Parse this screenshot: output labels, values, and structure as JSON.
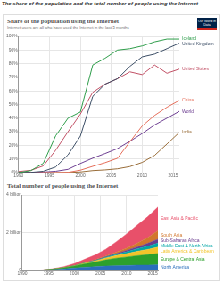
{
  "heading": "The share of the population and the total number of people using the Internet",
  "logo": "Our World in Data",
  "chart_data": [
    {
      "type": "line",
      "title": "Share of the population using the Internet",
      "subtitle": "Internet users are all who have used the Internet in the last 3 months",
      "x": [
        1990,
        1992,
        1994,
        1996,
        1998,
        2000,
        2002,
        2004,
        2006,
        2008,
        2010,
        2012,
        2014,
        2016
      ],
      "xlim": [
        1990,
        2016
      ],
      "xticks": [
        1990,
        1995,
        2000,
        2005,
        2010,
        2015
      ],
      "ylim": [
        0,
        100
      ],
      "yticks": [
        {
          "value": 0,
          "label": "0%"
        },
        {
          "value": 10,
          "label": "10%"
        },
        {
          "value": 20,
          "label": "20%"
        },
        {
          "value": 30,
          "label": "30%"
        },
        {
          "value": 40,
          "label": "40%"
        },
        {
          "value": 50,
          "label": "50%"
        },
        {
          "value": 60,
          "label": "60%"
        },
        {
          "value": 70,
          "label": "70%"
        },
        {
          "value": 80,
          "label": "80%"
        },
        {
          "value": 90,
          "label": "90%"
        },
        {
          "value": 100,
          "label": "100%"
        }
      ],
      "grid": true,
      "series": [
        {
          "name": "Iceland",
          "color": "#2e9d4a",
          "values": [
            0,
            1.5,
            6.8,
            27,
            40,
            44.5,
            79,
            84,
            90,
            91,
            93,
            96,
            98,
            98
          ]
        },
        {
          "name": "United Kingdom",
          "color": "#3c4e66",
          "values": [
            0.1,
            0.2,
            1,
            4.1,
            13,
            26.8,
            56,
            65,
            69,
            78,
            85,
            87,
            91,
            95
          ]
        },
        {
          "name": "United States",
          "color": "#c15065",
          "values": [
            0.8,
            1.7,
            4.9,
            16.4,
            30,
            43,
            59,
            65,
            69,
            74,
            72,
            79,
            73,
            76
          ]
        },
        {
          "name": "China",
          "color": "#e56e5a",
          "values": [
            0,
            0,
            0,
            0,
            0.2,
            1.8,
            4.6,
            7.3,
            10.5,
            22.6,
            34.3,
            42,
            48,
            53
          ]
        },
        {
          "name": "World",
          "color": "#6d3e91",
          "values": [
            0,
            0.2,
            0.4,
            1,
            2.4,
            6.7,
            10.6,
            14,
            17.6,
            23,
            28.7,
            35,
            40,
            45
          ]
        },
        {
          "name": "India",
          "color": "#996d39",
          "values": [
            0,
            0,
            0,
            0,
            0.1,
            0.5,
            1.5,
            2,
            2.8,
            4.4,
            7.5,
            12.6,
            21,
            29.5
          ]
        }
      ]
    },
    {
      "type": "area",
      "title": "Total number of people using the Internet",
      "x": [
        1990,
        1992,
        1994,
        1996,
        1998,
        2000,
        2002,
        2004,
        2006,
        2008,
        2010,
        2012,
        2014,
        2016
      ],
      "xlim": [
        1990,
        2016
      ],
      "xticks": [
        1990,
        1995,
        2000,
        2005,
        2010,
        2015
      ],
      "ylim": [
        0,
        4
      ],
      "yticks": [
        0,
        {
          "value": 2,
          "label": "2 billion"
        },
        {
          "value": 4,
          "label": "4 billion"
        }
      ],
      "stacked": true,
      "grid": true,
      "series": [
        {
          "name": "North America",
          "color": "#2a6ebb",
          "values": [
            0.002,
            0.005,
            0.014,
            0.045,
            0.085,
            0.13,
            0.17,
            0.2,
            0.23,
            0.25,
            0.26,
            0.28,
            0.28,
            0.3
          ]
        },
        {
          "name": "Europe & Central Asia",
          "color": "#2ca02c",
          "values": [
            0.001,
            0.003,
            0.01,
            0.03,
            0.06,
            0.1,
            0.18,
            0.25,
            0.33,
            0.4,
            0.45,
            0.5,
            0.55,
            0.6
          ]
        },
        {
          "name": "Latin America & Caribbean",
          "color": "#f2c42a",
          "values": [
            0,
            0,
            0,
            0.002,
            0.008,
            0.02,
            0.04,
            0.06,
            0.1,
            0.14,
            0.18,
            0.23,
            0.28,
            0.33
          ]
        },
        {
          "name": "Middle East & North Africa",
          "color": "#00a6a6",
          "values": [
            0,
            0,
            0,
            0,
            0.001,
            0.004,
            0.01,
            0.02,
            0.04,
            0.06,
            0.1,
            0.13,
            0.17,
            0.22
          ]
        },
        {
          "name": "Sub-Saharan Africa",
          "color": "#6b3d8f",
          "values": [
            0,
            0,
            0,
            0,
            0,
            0.002,
            0.006,
            0.012,
            0.025,
            0.04,
            0.07,
            0.1,
            0.15,
            0.2
          ]
        },
        {
          "name": "South Asia",
          "color": "#d1772d",
          "values": [
            0,
            0,
            0,
            0,
            0.001,
            0.006,
            0.02,
            0.03,
            0.045,
            0.07,
            0.12,
            0.2,
            0.3,
            0.45
          ]
        },
        {
          "name": "East Asia & Pacific",
          "color": "#e8506a",
          "values": [
            0,
            0.001,
            0.005,
            0.02,
            0.05,
            0.1,
            0.17,
            0.25,
            0.35,
            0.55,
            0.75,
            0.95,
            1.1,
            1.25
          ]
        }
      ]
    }
  ]
}
